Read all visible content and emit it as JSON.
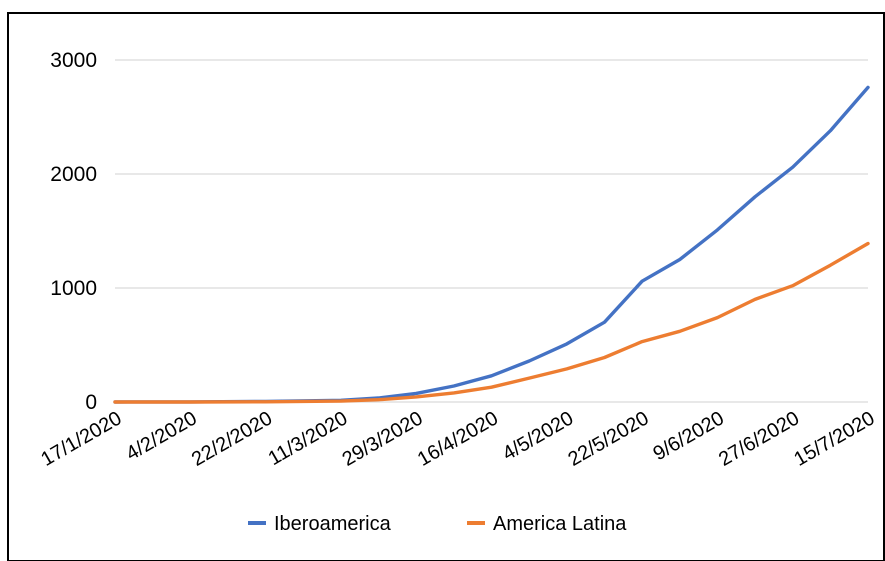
{
  "chart_data": {
    "type": "line",
    "title": "",
    "xlabel": "",
    "ylabel": "",
    "ylim": [
      0,
      3000
    ],
    "yticks": [
      0,
      1000,
      2000,
      3000
    ],
    "grid": true,
    "legend": "bottom",
    "x_tick_labels": [
      "17/1/2020",
      "4/2/2020",
      "22/2/2020",
      "11/3/2020",
      "29/3/2020",
      "16/4/2020",
      "4/5/2020",
      "22/5/2020",
      "9/6/2020",
      "27/6/2020",
      "15/7/2020"
    ],
    "x": [
      "17/1/2020",
      "4/2/2020",
      "22/2/2020",
      "11/3/2020",
      "20/3/2020",
      "29/3/2020",
      "7/4/2020",
      "16/4/2020",
      "25/4/2020",
      "4/5/2020",
      "13/5/2020",
      "22/5/2020",
      "31/5/2020",
      "9/6/2020",
      "18/6/2020",
      "27/6/2020",
      "6/7/2020",
      "15/7/2020"
    ],
    "series": [
      {
        "name": "Iberoamerica",
        "color": "#4472c4",
        "values": [
          0,
          1,
          5,
          15,
          35,
          75,
          140,
          230,
          360,
          510,
          700,
          1060,
          1250,
          1510,
          1800,
          2060,
          2380,
          2760
        ]
      },
      {
        "name": "America Latina",
        "color": "#ed7d31",
        "values": [
          0,
          0,
          2,
          8,
          20,
          45,
          80,
          130,
          210,
          290,
          390,
          530,
          620,
          740,
          900,
          1020,
          1200,
          1390
        ]
      }
    ]
  }
}
